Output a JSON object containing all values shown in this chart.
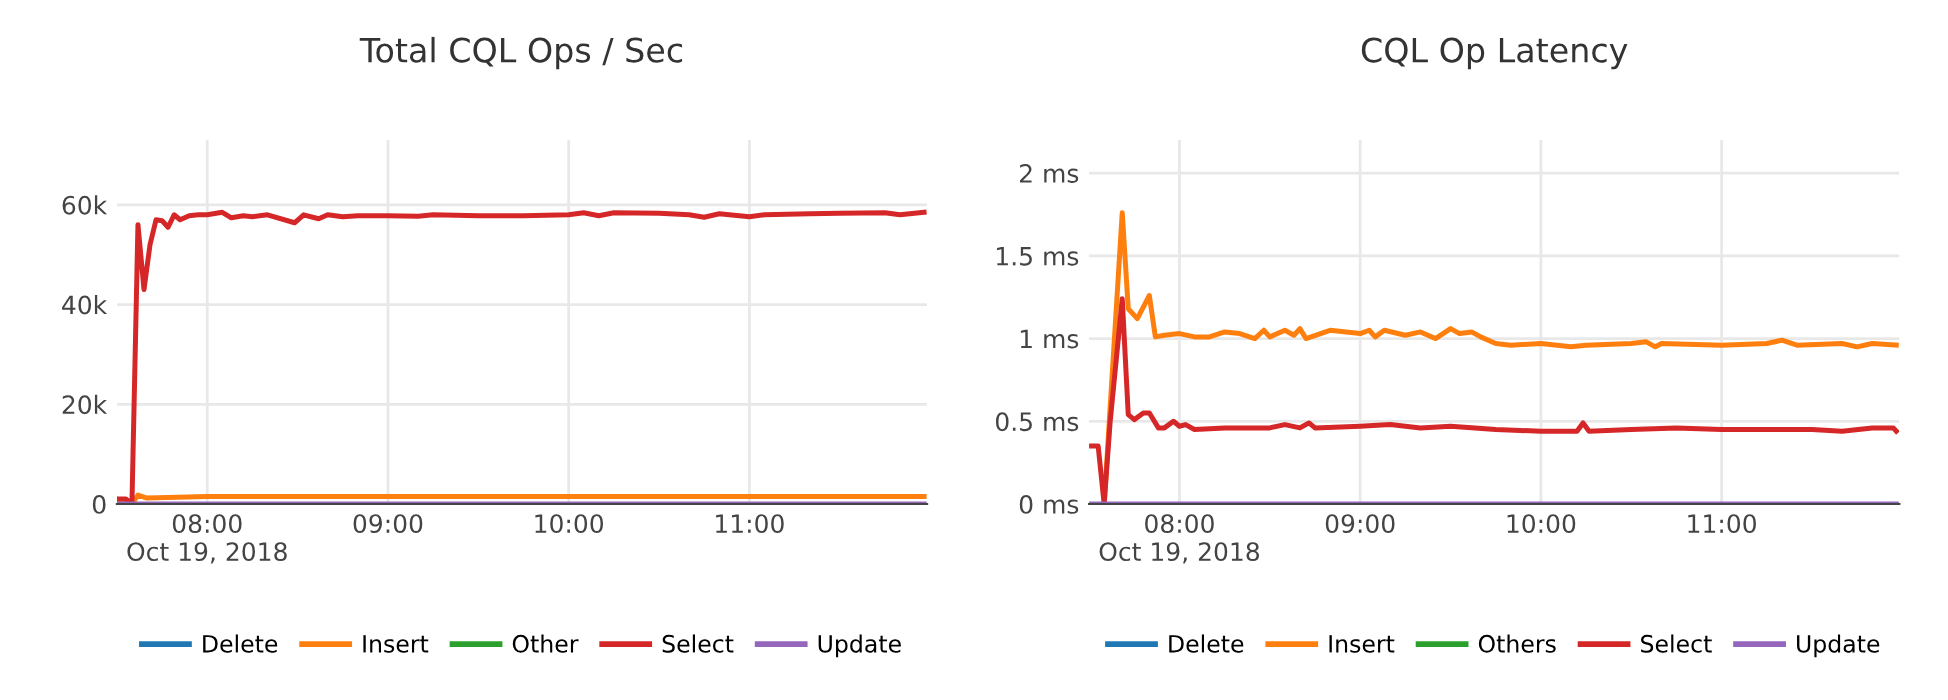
{
  "chart_data": [
    {
      "type": "line",
      "title": "Total CQL Ops / Sec",
      "xlim": [
        "2018-10-19T07:30",
        "2018-10-19T11:59"
      ],
      "ylim": [
        0,
        73000
      ],
      "xticks": [
        {
          "value": "2018-10-19T08:00",
          "label": "08:00\nOct 19, 2018"
        },
        {
          "value": "2018-10-19T09:00",
          "label": "09:00"
        },
        {
          "value": "2018-10-19T10:00",
          "label": "10:00"
        },
        {
          "value": "2018-10-19T11:00",
          "label": "11:00"
        }
      ],
      "yticks": [
        0,
        {
          "value": 20000,
          "label": "20k"
        },
        {
          "value": 40000,
          "label": "40k"
        },
        {
          "value": 60000,
          "label": "60k"
        }
      ],
      "grid": true,
      "legend": "bottom",
      "marker": "none",
      "line_style": "solid",
      "series": [
        {
          "name": "Delete",
          "color": "#1f77b4"
        },
        {
          "name": "Insert",
          "color": "#ff7f0e",
          "x": [
            "2018-10-19T07:30",
            "2018-10-19T07:35",
            "2018-10-19T07:37",
            "2018-10-19T07:40",
            "2018-10-19T08:00",
            "2018-10-19T11:58"
          ],
          "values": [
            1000,
            0,
            1800,
            1200,
            1500,
            1500
          ]
        },
        {
          "name": "Other",
          "color": "#2ca02c"
        },
        {
          "name": "Select",
          "color": "#d62728",
          "x": [
            "2018-10-19T07:30",
            "2018-10-19T07:33",
            "2018-10-19T07:35",
            "2018-10-19T07:37",
            "2018-10-19T07:39",
            "2018-10-19T07:41",
            "2018-10-19T07:43",
            "2018-10-19T07:45",
            "2018-10-19T07:47",
            "2018-10-19T07:49",
            "2018-10-19T07:51",
            "2018-10-19T07:54",
            "2018-10-19T07:57",
            "2018-10-19T08:00",
            "2018-10-19T08:05",
            "2018-10-19T08:08",
            "2018-10-19T08:12",
            "2018-10-19T08:15",
            "2018-10-19T08:20",
            "2018-10-19T08:29",
            "2018-10-19T08:32",
            "2018-10-19T08:37",
            "2018-10-19T08:40",
            "2018-10-19T08:45",
            "2018-10-19T08:50",
            "2018-10-19T09:00",
            "2018-10-19T09:10",
            "2018-10-19T09:15",
            "2018-10-19T09:30",
            "2018-10-19T09:45",
            "2018-10-19T10:00",
            "2018-10-19T10:05",
            "2018-10-19T10:10",
            "2018-10-19T10:15",
            "2018-10-19T10:30",
            "2018-10-19T10:40",
            "2018-10-19T10:45",
            "2018-10-19T10:50",
            "2018-10-19T11:00",
            "2018-10-19T11:05",
            "2018-10-19T11:20",
            "2018-10-19T11:30",
            "2018-10-19T11:45",
            "2018-10-19T11:50",
            "2018-10-19T11:58"
          ],
          "values": [
            1000,
            1000,
            0,
            56000,
            43000,
            52000,
            57000,
            56800,
            55500,
            58000,
            57000,
            57800,
            58000,
            58000,
            58500,
            57400,
            57800,
            57600,
            58000,
            56400,
            58000,
            57200,
            58000,
            57600,
            57800,
            57800,
            57700,
            58000,
            57800,
            57800,
            58000,
            58400,
            57800,
            58400,
            58300,
            58000,
            57500,
            58200,
            57600,
            58000,
            58200,
            58300,
            58400,
            58000,
            58500
          ]
        },
        {
          "name": "Update",
          "color": "#9467bd",
          "x": [
            "2018-10-19T07:30",
            "2018-10-19T11:58"
          ],
          "values": [
            0,
            0
          ]
        }
      ]
    },
    {
      "type": "line",
      "title": "CQL Op Latency",
      "xlim": [
        "2018-10-19T07:30",
        "2018-10-19T11:59"
      ],
      "ylim": [
        0,
        2.2
      ],
      "xticks": [
        {
          "value": "2018-10-19T08:00",
          "label": "08:00\nOct 19, 2018"
        },
        {
          "value": "2018-10-19T09:00",
          "label": "09:00"
        },
        {
          "value": "2018-10-19T10:00",
          "label": "10:00"
        },
        {
          "value": "2018-10-19T11:00",
          "label": "11:00"
        }
      ],
      "yticks": [
        {
          "value": 0,
          "label": "0 ms"
        },
        {
          "value": 0.5,
          "label": "0.5 ms"
        },
        {
          "value": 1,
          "label": "1 ms"
        },
        {
          "value": 1.5,
          "label": "1.5 ms"
        },
        {
          "value": 2,
          "label": "2 ms"
        }
      ],
      "grid": true,
      "legend": "bottom",
      "marker": "none",
      "line_style": "solid",
      "series": [
        {
          "name": "Delete",
          "color": "#1f77b4"
        },
        {
          "name": "Insert",
          "color": "#ff7f0e",
          "x": [
            "2018-10-19T07:35",
            "2018-10-19T07:41",
            "2018-10-19T07:43",
            "2018-10-19T07:46",
            "2018-10-19T07:50",
            "2018-10-19T07:52",
            "2018-10-19T07:55",
            "2018-10-19T08:00",
            "2018-10-19T08:05",
            "2018-10-19T08:10",
            "2018-10-19T08:15",
            "2018-10-19T08:20",
            "2018-10-19T08:25",
            "2018-10-19T08:28",
            "2018-10-19T08:30",
            "2018-10-19T08:35",
            "2018-10-19T08:38",
            "2018-10-19T08:40",
            "2018-10-19T08:42",
            "2018-10-19T08:50",
            "2018-10-19T09:00",
            "2018-10-19T09:03",
            "2018-10-19T09:05",
            "2018-10-19T09:08",
            "2018-10-19T09:15",
            "2018-10-19T09:20",
            "2018-10-19T09:25",
            "2018-10-19T09:30",
            "2018-10-19T09:33",
            "2018-10-19T09:37",
            "2018-10-19T09:40",
            "2018-10-19T09:45",
            "2018-10-19T09:50",
            "2018-10-19T10:00",
            "2018-10-19T10:10",
            "2018-10-19T10:15",
            "2018-10-19T10:30",
            "2018-10-19T10:35",
            "2018-10-19T10:38",
            "2018-10-19T10:40",
            "2018-10-19T11:00",
            "2018-10-19T11:15",
            "2018-10-19T11:20",
            "2018-10-19T11:25",
            "2018-10-19T11:40",
            "2018-10-19T11:45",
            "2018-10-19T11:50",
            "2018-10-19T11:58"
          ],
          "values": [
            0,
            1.76,
            1.18,
            1.12,
            1.26,
            1.01,
            1.02,
            1.03,
            1.01,
            1.01,
            1.04,
            1.03,
            1.0,
            1.05,
            1.01,
            1.05,
            1.02,
            1.06,
            1.0,
            1.05,
            1.03,
            1.05,
            1.01,
            1.05,
            1.02,
            1.04,
            1.0,
            1.06,
            1.03,
            1.04,
            1.01,
            0.97,
            0.96,
            0.97,
            0.95,
            0.96,
            0.97,
            0.98,
            0.95,
            0.97,
            0.96,
            0.97,
            0.99,
            0.96,
            0.97,
            0.95,
            0.97,
            0.96
          ]
        },
        {
          "name": "Others",
          "color": "#2ca02c"
        },
        {
          "name": "Select",
          "color": "#d62728",
          "x": [
            "2018-10-19T07:30",
            "2018-10-19T07:33",
            "2018-10-19T07:35",
            "2018-10-19T07:37",
            "2018-10-19T07:41",
            "2018-10-19T07:43",
            "2018-10-19T07:45",
            "2018-10-19T07:48",
            "2018-10-19T07:50",
            "2018-10-19T07:53",
            "2018-10-19T07:55",
            "2018-10-19T07:58",
            "2018-10-19T08:00",
            "2018-10-19T08:02",
            "2018-10-19T08:05",
            "2018-10-19T08:15",
            "2018-10-19T08:30",
            "2018-10-19T08:35",
            "2018-10-19T08:40",
            "2018-10-19T08:43",
            "2018-10-19T08:45",
            "2018-10-19T09:00",
            "2018-10-19T09:10",
            "2018-10-19T09:20",
            "2018-10-19T09:30",
            "2018-10-19T09:45",
            "2018-10-19T10:00",
            "2018-10-19T10:12",
            "2018-10-19T10:14",
            "2018-10-19T10:16",
            "2018-10-19T10:30",
            "2018-10-19T10:45",
            "2018-10-19T11:00",
            "2018-10-19T11:30",
            "2018-10-19T11:40",
            "2018-10-19T11:50",
            "2018-10-19T11:57",
            "2018-10-19T11:58"
          ],
          "values": [
            0.35,
            0.35,
            0,
            0.5,
            1.24,
            0.54,
            0.51,
            0.55,
            0.55,
            0.46,
            0.46,
            0.5,
            0.47,
            0.48,
            0.45,
            0.46,
            0.46,
            0.48,
            0.46,
            0.49,
            0.46,
            0.47,
            0.48,
            0.46,
            0.47,
            0.45,
            0.44,
            0.44,
            0.49,
            0.44,
            0.45,
            0.46,
            0.45,
            0.45,
            0.44,
            0.46,
            0.46,
            0.44
          ]
        },
        {
          "name": "Update",
          "color": "#9467bd",
          "x": [
            "2018-10-19T07:30",
            "2018-10-19T11:58"
          ],
          "values": [
            0,
            0
          ]
        }
      ]
    }
  ]
}
